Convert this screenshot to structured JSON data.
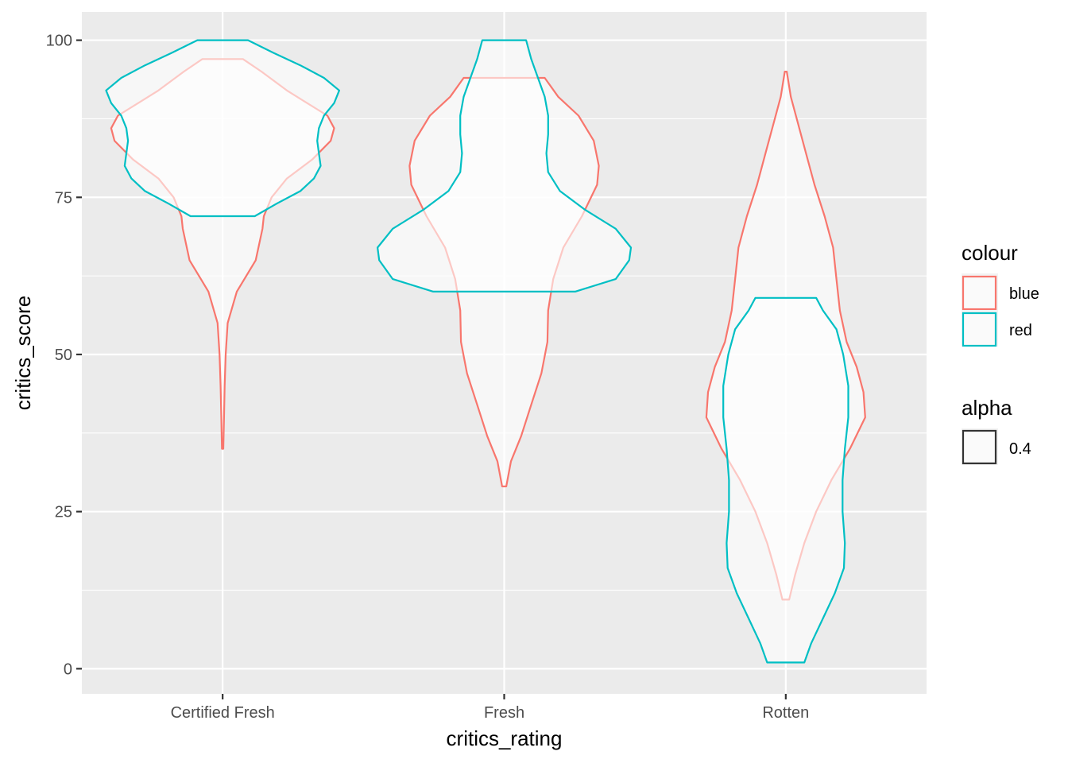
{
  "chart_data": {
    "type": "violin",
    "xlabel": "critics_rating",
    "ylabel": "critics_score",
    "categories": [
      "Certified Fresh",
      "Fresh",
      "Rotten"
    ],
    "ylim": [
      -4,
      104.5
    ],
    "yticks": [
      0,
      25,
      50,
      75,
      100
    ],
    "ytick_labels": [
      "0",
      "25",
      "50",
      "75",
      "100"
    ],
    "grid": true,
    "legend_position": "right",
    "series": [
      {
        "name": "blue",
        "color": "#F8766D",
        "violins": [
          {
            "category": "Certified Fresh",
            "profile": [
              [
                35,
                0.002
              ],
              [
                40,
                0.004
              ],
              [
                45,
                0.006
              ],
              [
                50,
                0.009
              ],
              [
                55,
                0.015
              ],
              [
                60,
                0.042
              ],
              [
                65,
                0.098
              ],
              [
                70,
                0.118
              ],
              [
                72,
                0.122
              ],
              [
                75,
                0.145
              ],
              [
                78,
                0.19
              ],
              [
                81,
                0.265
              ],
              [
                84,
                0.32
              ],
              [
                86,
                0.33
              ],
              [
                88,
                0.31
              ],
              [
                90,
                0.25
              ],
              [
                92,
                0.19
              ],
              [
                95,
                0.115
              ],
              [
                97,
                0.06
              ]
            ]
          },
          {
            "category": "Fresh",
            "profile": [
              [
                29,
                0.006
              ],
              [
                33,
                0.02
              ],
              [
                37,
                0.05
              ],
              [
                42,
                0.08
              ],
              [
                47,
                0.11
              ],
              [
                52,
                0.128
              ],
              [
                57,
                0.13
              ],
              [
                62,
                0.145
              ],
              [
                67,
                0.175
              ],
              [
                72,
                0.23
              ],
              [
                77,
                0.275
              ],
              [
                80,
                0.28
              ],
              [
                84,
                0.265
              ],
              [
                88,
                0.22
              ],
              [
                91,
                0.16
              ],
              [
                94,
                0.12
              ]
            ]
          },
          {
            "category": "Rotten",
            "profile": [
              [
                11,
                0.01
              ],
              [
                15,
                0.028
              ],
              [
                20,
                0.055
              ],
              [
                25,
                0.09
              ],
              [
                30,
                0.135
              ],
              [
                35,
                0.19
              ],
              [
                40,
                0.235
              ],
              [
                44,
                0.23
              ],
              [
                48,
                0.21
              ],
              [
                52,
                0.18
              ],
              [
                57,
                0.16
              ],
              [
                62,
                0.15
              ],
              [
                67,
                0.14
              ],
              [
                72,
                0.115
              ],
              [
                77,
                0.085
              ],
              [
                82,
                0.06
              ],
              [
                87,
                0.035
              ],
              [
                91,
                0.015
              ],
              [
                95,
                0.003
              ]
            ]
          }
        ]
      },
      {
        "name": "red",
        "color": "#00BFC4",
        "violins": [
          {
            "category": "Certified Fresh",
            "profile": [
              [
                72,
                0.095
              ],
              [
                74,
                0.16
              ],
              [
                76,
                0.23
              ],
              [
                78,
                0.27
              ],
              [
                80,
                0.29
              ],
              [
                82,
                0.285
              ],
              [
                84,
                0.28
              ],
              [
                86,
                0.285
              ],
              [
                88,
                0.3
              ],
              [
                90,
                0.33
              ],
              [
                92,
                0.345
              ],
              [
                94,
                0.3
              ],
              [
                96,
                0.23
              ],
              [
                98,
                0.15
              ],
              [
                100,
                0.075
              ]
            ]
          },
          {
            "category": "Fresh",
            "profile": [
              [
                60,
                0.21
              ],
              [
                62,
                0.33
              ],
              [
                65,
                0.37
              ],
              [
                67,
                0.375
              ],
              [
                70,
                0.33
              ],
              [
                73,
                0.24
              ],
              [
                76,
                0.165
              ],
              [
                79,
                0.13
              ],
              [
                82,
                0.125
              ],
              [
                85,
                0.13
              ],
              [
                88,
                0.13
              ],
              [
                91,
                0.12
              ],
              [
                94,
                0.1
              ],
              [
                97,
                0.08
              ],
              [
                100,
                0.065
              ]
            ]
          },
          {
            "category": "Rotten",
            "profile": [
              [
                1,
                0.055
              ],
              [
                4,
                0.075
              ],
              [
                8,
                0.11
              ],
              [
                12,
                0.145
              ],
              [
                16,
                0.172
              ],
              [
                20,
                0.175
              ],
              [
                25,
                0.168
              ],
              [
                30,
                0.168
              ],
              [
                35,
                0.175
              ],
              [
                40,
                0.185
              ],
              [
                45,
                0.185
              ],
              [
                50,
                0.17
              ],
              [
                54,
                0.15
              ],
              [
                57,
                0.11
              ],
              [
                59,
                0.09
              ]
            ]
          }
        ]
      }
    ],
    "legend": {
      "colour": {
        "title": "colour",
        "items": [
          {
            "label": "blue",
            "color": "#F8766D"
          },
          {
            "label": "red",
            "color": "#00BFC4"
          }
        ]
      },
      "alpha": {
        "title": "alpha",
        "items": [
          {
            "label": "0.4",
            "color": "#333333"
          }
        ]
      }
    }
  }
}
